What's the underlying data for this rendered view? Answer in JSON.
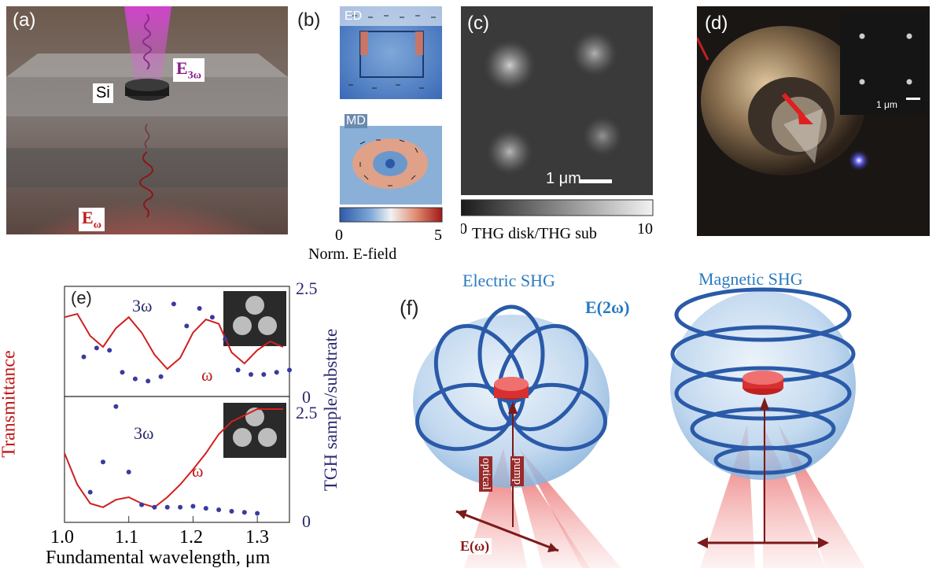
{
  "panel_a": {
    "label": "(a)",
    "material": "Si",
    "field_out_main": "E",
    "field_out_sub": "3ω",
    "field_in_main": "E",
    "field_in_sub": "ω"
  },
  "panel_b": {
    "label": "(b)",
    "ed_label": "ED",
    "md_label": "MD",
    "colorbar_min": "0",
    "colorbar_max": "5",
    "colorbar_title": "Norm. E-field"
  },
  "panel_c": {
    "label": "(c)",
    "scalebar": "1 μm",
    "colorbar_min": "0",
    "colorbar_max": "10",
    "colorbar_title": "THG disk/THG sub"
  },
  "panel_d": {
    "label": "(d)",
    "inset_scalebar": "1 μm"
  },
  "panel_e": {
    "label": "(e)",
    "ylabel_left": "Transmittance",
    "ylabel_right": "TGH sample/substrate",
    "xlabel": "Fundamental wavelength, μm",
    "xticks": [
      "1.0",
      "1.1",
      "1.2",
      "1.3"
    ],
    "top_right_ticks": [
      "2.5",
      "0"
    ],
    "bottom_right_ticks": [
      "2.5",
      "0"
    ],
    "label_3w": "3ω",
    "label_w": "ω"
  },
  "panel_f": {
    "label": "(f)",
    "title_electric": "Electric SHG",
    "title_magnetic": "Magnetic SHG",
    "e2w": "E(2ω)",
    "ew": "E(ω)",
    "optical": "optical",
    "pump": "pump"
  },
  "chart_data": [
    {
      "type": "line",
      "series": [
        {
          "name": "ω",
          "x": [
            1.0,
            1.02,
            1.04,
            1.06,
            1.08,
            1.1,
            1.12,
            1.14,
            1.16,
            1.18,
            1.2,
            1.22,
            1.24,
            1.26,
            1.28,
            1.3,
            1.32,
            1.34
          ],
          "y": [
            0.72,
            0.75,
            0.55,
            0.45,
            0.62,
            0.72,
            0.58,
            0.38,
            0.25,
            0.35,
            0.58,
            0.7,
            0.66,
            0.4,
            0.3,
            0.42,
            0.5,
            0.45
          ]
        },
        {
          "name": "3ω",
          "x": [
            1.03,
            1.05,
            1.07,
            1.09,
            1.11,
            1.13,
            1.15,
            1.17,
            1.19,
            1.21,
            1.23,
            1.25,
            1.27,
            1.29,
            1.31,
            1.33,
            1.35
          ],
          "y": [
            0.9,
            1.1,
            1.05,
            0.55,
            0.4,
            0.35,
            0.45,
            2.1,
            1.6,
            2.0,
            1.8,
            1.3,
            0.6,
            0.5,
            0.5,
            0.55,
            0.6
          ]
        }
      ],
      "xlim": [
        1.0,
        1.35
      ],
      "ylim_right": [
        0,
        2.5
      ]
    },
    {
      "type": "line",
      "series": [
        {
          "name": "ω",
          "x": [
            1.0,
            1.02,
            1.04,
            1.06,
            1.08,
            1.1,
            1.12,
            1.14,
            1.16,
            1.18,
            1.2,
            1.22,
            1.24,
            1.26,
            1.28,
            1.3,
            1.32,
            1.34
          ],
          "y": [
            0.55,
            0.3,
            0.15,
            0.12,
            0.18,
            0.2,
            0.15,
            0.12,
            0.2,
            0.3,
            0.42,
            0.55,
            0.7,
            0.8,
            0.85,
            0.9,
            0.9,
            0.9
          ]
        },
        {
          "name": "3ω",
          "x": [
            1.04,
            1.06,
            1.08,
            1.1,
            1.12,
            1.14,
            1.16,
            1.18,
            1.2,
            1.22,
            1.24,
            1.26,
            1.28,
            1.3
          ],
          "y": [
            0.6,
            1.2,
            2.3,
            1.0,
            0.35,
            0.3,
            0.3,
            0.3,
            0.32,
            0.28,
            0.25,
            0.22,
            0.2,
            0.18
          ]
        }
      ],
      "xlim": [
        1.0,
        1.35
      ],
      "ylim_right": [
        0,
        2.5
      ]
    }
  ]
}
